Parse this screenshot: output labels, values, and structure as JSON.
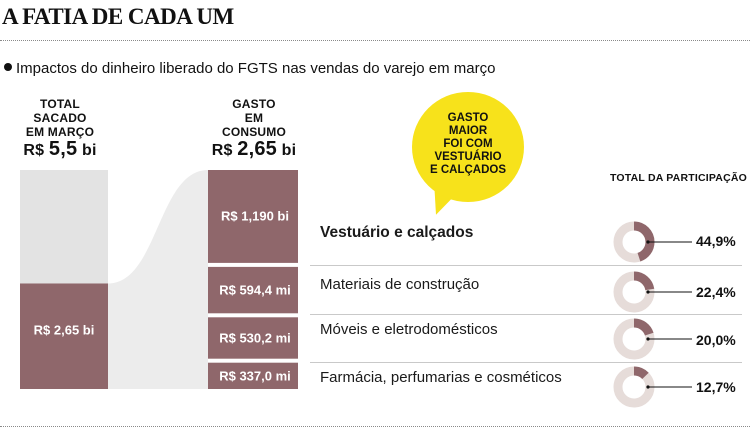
{
  "title": "A FATIA DE CADA UM",
  "subtitle": "Impactos do dinheiro liberado do FGTS nas vendas do varejo em março",
  "left_column": {
    "heading_lines": [
      "TOTAL",
      "SACADO",
      "EM MARÇO"
    ],
    "total_prefix": "R$",
    "total_value": "5,5",
    "total_unit": "bi",
    "spent_label": "R$ 2,65 bi"
  },
  "right_column": {
    "heading_lines": [
      "GASTO",
      "EM",
      "CONSUMO"
    ],
    "total_prefix": "R$",
    "total_value": "2,65",
    "total_unit": "bi"
  },
  "callout_lines": [
    "GASTO",
    "MAIOR",
    "FOI COM",
    "VESTUÁRIO",
    "E CALÇADOS"
  ],
  "participation_heading": "TOTAL DA PARTICIPAÇÃO",
  "colors": {
    "bar": "#8f676b",
    "gray_bar": "#e3e3e3",
    "flow": "#ececec",
    "donut_track": "#e6dcd9",
    "callout": "#f7e21b"
  },
  "chart_data": {
    "type": "bar",
    "title": "A FATIA DE CADA UM",
    "subtitle": "Impactos do dinheiro liberado do FGTS nas vendas do varejo em março",
    "total_withdrawn": {
      "value": 5.5,
      "unit": "bi",
      "label": "R$ 5,5 bi"
    },
    "total_spent": {
      "value": 2.65,
      "unit": "bi",
      "label": "R$ 2,65 bi"
    },
    "categories": [
      "Vestuário e calçados",
      "Materiais de construção",
      "Móveis e eletrodomésticos",
      "Farmácia, perfumarias e cosméticos"
    ],
    "values_mi": [
      1190,
      594.4,
      530.2,
      337.0
    ],
    "value_labels": [
      "R$ 1,190 bi",
      "R$ 594,4 mi",
      "R$ 530,2 mi",
      "R$ 337,0 mi"
    ],
    "participation_pct": [
      44.9,
      22.4,
      20.0,
      12.7
    ],
    "participation_labels": [
      "44,9%",
      "22,4%",
      "20,0%",
      "12,7%"
    ]
  }
}
